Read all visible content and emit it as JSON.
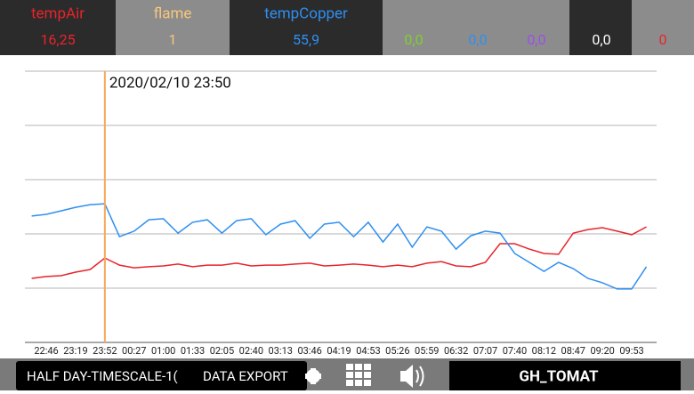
{
  "header": {
    "cells": [
      {
        "label": "tempAir",
        "value": "16,25",
        "color": "#e8242b"
      },
      {
        "label": "flame",
        "value": "1",
        "color": "#f6c77d"
      },
      {
        "label": "tempCopper",
        "value": "55,9",
        "color": "#2f8ff0"
      },
      {
        "value": "0,0",
        "color": "#7fd02f"
      },
      {
        "value": "0,0",
        "color": "#2f8ff0"
      },
      {
        "value": "0,0",
        "color": "#9a4fe8"
      },
      {
        "value": "0,0",
        "color": "#ffffff"
      },
      {
        "value": "0",
        "color": "#e8242b"
      }
    ]
  },
  "chart_data": {
    "type": "line",
    "cursor_label": "2020/02/10 23:50",
    "grid": true,
    "ylim": [
      0,
      100
    ],
    "categories": [
      null,
      "22:46",
      null,
      "23:19",
      null,
      "23:52",
      null,
      "00:27",
      null,
      "01:00",
      null,
      "01:33",
      null,
      "02:05",
      null,
      "02:40",
      null,
      "03:13",
      null,
      "03:46",
      null,
      "04:19",
      null,
      "04:53",
      null,
      "05:26",
      null,
      "05:59",
      null,
      "06:32",
      null,
      "07:07",
      null,
      "07:40",
      null,
      "08:12",
      null,
      "08:47",
      null,
      "09:20",
      null,
      "09:53",
      null
    ],
    "series": [
      {
        "name": "tempAir",
        "color": "#e8242b",
        "values": [
          23.6,
          24.3,
          24.6,
          25.9,
          26.9,
          31.1,
          28.5,
          27.5,
          27.9,
          28.2,
          28.9,
          27.9,
          28.5,
          28.5,
          29.2,
          28.2,
          28.5,
          28.5,
          28.9,
          29.2,
          28.2,
          28.5,
          28.9,
          28.5,
          27.9,
          28.5,
          27.9,
          29.2,
          29.8,
          28.2,
          27.9,
          29.5,
          36.4,
          36.4,
          34.4,
          32.8,
          32.5,
          40.3,
          41.6,
          42.3,
          41.0,
          39.7,
          42.6
        ]
      },
      {
        "name": "tempCopper",
        "color": "#2f8ff0",
        "values": [
          46.6,
          47.2,
          48.5,
          49.8,
          50.8,
          51.1,
          39.0,
          41.0,
          45.2,
          45.6,
          40.3,
          44.3,
          45.2,
          40.3,
          44.9,
          45.6,
          39.7,
          43.6,
          44.9,
          38.4,
          43.6,
          44.3,
          39.0,
          44.3,
          37.0,
          43.6,
          35.1,
          42.6,
          41.0,
          34.4,
          39.3,
          41.0,
          40.3,
          32.8,
          29.5,
          26.2,
          29.5,
          27.2,
          23.6,
          22.0,
          19.7,
          19.7,
          27.9
        ]
      }
    ]
  },
  "footer": {
    "timescale": "HALF DAY-TIMESCALE-1(",
    "export": "DATA EXPORT",
    "device": "GH_TOMAT"
  }
}
